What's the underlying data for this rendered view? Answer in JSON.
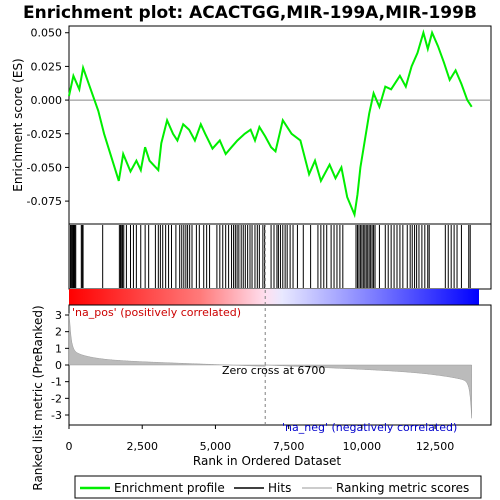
{
  "chart_data": {
    "type": "line",
    "title": "Enrichment plot: ACACTGG,MIR-199A,MIR-199B",
    "xlabel": "Rank in Ordered Dataset",
    "ylabel_top": "Enrichment score (ES)",
    "ylabel_bottom": "Ranked list metric (PreRanked)",
    "xlim": [
      0,
      14000
    ],
    "ylim_es": [
      -0.092,
      0.055
    ],
    "ylim_metric": [
      -3.6,
      3.6
    ],
    "x_ticks": [
      0,
      2500,
      5000,
      7500,
      10000,
      12500
    ],
    "x_tick_labels": [
      "0",
      "2,500",
      "5,000",
      "7,500",
      "10,000",
      "12,500"
    ],
    "es_ticks": [
      0.05,
      0.025,
      0.0,
      -0.025,
      -0.05,
      -0.075
    ],
    "es_tick_labels": [
      "0.050",
      "0.025",
      "0.000",
      "-0.025",
      "-0.050",
      "-0.075"
    ],
    "metric_ticks": [
      3,
      2,
      1,
      0,
      -1,
      -2,
      -3
    ],
    "metric_tick_labels": [
      "3",
      "2",
      "1",
      "0",
      "-1",
      "-2",
      "-3"
    ],
    "zero_cross_rank": 6700,
    "zero_cross_label": "Zero cross at 6700",
    "pos_label": "'na_pos' (positively correlated)",
    "neg_label": "'na_neg' (negatively correlated)",
    "legend": {
      "placement": "bottom",
      "entries": [
        "Enrichment profile",
        "Hits",
        "Ranking metric scores"
      ]
    },
    "colors": {
      "profile": "#00ee00",
      "hits": "#000000",
      "metric": "#bbbbbb",
      "pos_label": "#cc0000",
      "neg_label": "#0000cc",
      "zero_line": "#808080"
    },
    "es_profile": {
      "x": [
        0,
        150,
        350,
        480,
        1000,
        1200,
        1700,
        1850,
        2100,
        2300,
        2450,
        2600,
        2750,
        3050,
        3150,
        3350,
        3550,
        3700,
        3900,
        4100,
        4300,
        4500,
        4650,
        4900,
        5150,
        5350,
        5550,
        5750,
        6000,
        6200,
        6350,
        6500,
        6700,
        6900,
        7050,
        7300,
        7600,
        7900,
        8200,
        8400,
        8600,
        8900,
        9100,
        9300,
        9500,
        9750,
        9850,
        9950,
        10100,
        10250,
        10400,
        10600,
        10800,
        11000,
        11300,
        11500,
        11700,
        11900,
        12100,
        12250,
        12400,
        12600,
        12800,
        13000,
        13200,
        13400,
        13600,
        13750
      ],
      "y": [
        0.003,
        0.018,
        0.008,
        0.024,
        -0.008,
        -0.025,
        -0.06,
        -0.04,
        -0.053,
        -0.045,
        -0.052,
        -0.035,
        -0.045,
        -0.052,
        -0.032,
        -0.015,
        -0.025,
        -0.03,
        -0.018,
        -0.022,
        -0.03,
        -0.018,
        -0.025,
        -0.036,
        -0.03,
        -0.04,
        -0.035,
        -0.03,
        -0.025,
        -0.022,
        -0.03,
        -0.02,
        -0.027,
        -0.035,
        -0.038,
        -0.015,
        -0.025,
        -0.03,
        -0.055,
        -0.045,
        -0.06,
        -0.048,
        -0.058,
        -0.05,
        -0.072,
        -0.085,
        -0.07,
        -0.05,
        -0.03,
        -0.01,
        0.005,
        -0.005,
        0.01,
        0.008,
        0.018,
        0.01,
        0.025,
        0.035,
        0.05,
        0.038,
        0.05,
        0.04,
        0.028,
        0.015,
        0.022,
        0.012,
        0.0,
        -0.005
      ]
    },
    "hits_ranks": [
      50,
      80,
      110,
      140,
      170,
      200,
      230,
      420,
      450,
      480,
      1150,
      1720,
      1760,
      1800,
      1830,
      1870,
      1960,
      2100,
      2200,
      2300,
      2450,
      2600,
      2720,
      2950,
      3050,
      3120,
      3200,
      3300,
      3400,
      3500,
      3650,
      3780,
      3850,
      3920,
      3990,
      4050,
      4120,
      4200,
      4350,
      4450,
      4600,
      4700,
      4800,
      5050,
      5150,
      5250,
      5350,
      5450,
      5550,
      5620,
      5680,
      5740,
      5800,
      5880,
      5950,
      6020,
      6100,
      6180,
      6250,
      6350,
      6430,
      6500,
      6620,
      6680,
      6900,
      7000,
      7100,
      7150,
      7220,
      7300,
      7380,
      7450,
      7550,
      7650,
      7800,
      8000,
      8250,
      8500,
      8600,
      8700,
      8800,
      8950,
      9050,
      9150,
      9250,
      9350,
      9800,
      9850,
      9900,
      9950,
      10000,
      10050,
      10100,
      10150,
      10200,
      10250,
      10300,
      10350,
      10400,
      10450,
      10600,
      10800,
      10900,
      11000,
      11100,
      11200,
      11300,
      11400,
      11550,
      11650,
      11720,
      11800,
      11870,
      11950,
      12050,
      12150,
      12250,
      12300,
      12850,
      12950,
      13050,
      13150,
      13250,
      13400,
      13650,
      13700
    ]
  }
}
